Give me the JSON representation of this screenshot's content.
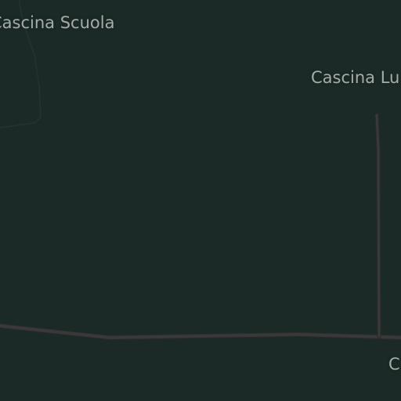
{
  "map": {
    "background_color": "#1b2a26",
    "road_color": "#393939",
    "road_outline_color": "#2a2a2a",
    "area_outline_color": "#24332f",
    "label_color": "#a7aba8",
    "labels": [
      {
        "id": "cascina-scuola",
        "text": "Cascina Scuola"
      },
      {
        "id": "cascina-lu",
        "text": "Cascina Lu"
      },
      {
        "id": "c",
        "text": "C"
      }
    ]
  }
}
